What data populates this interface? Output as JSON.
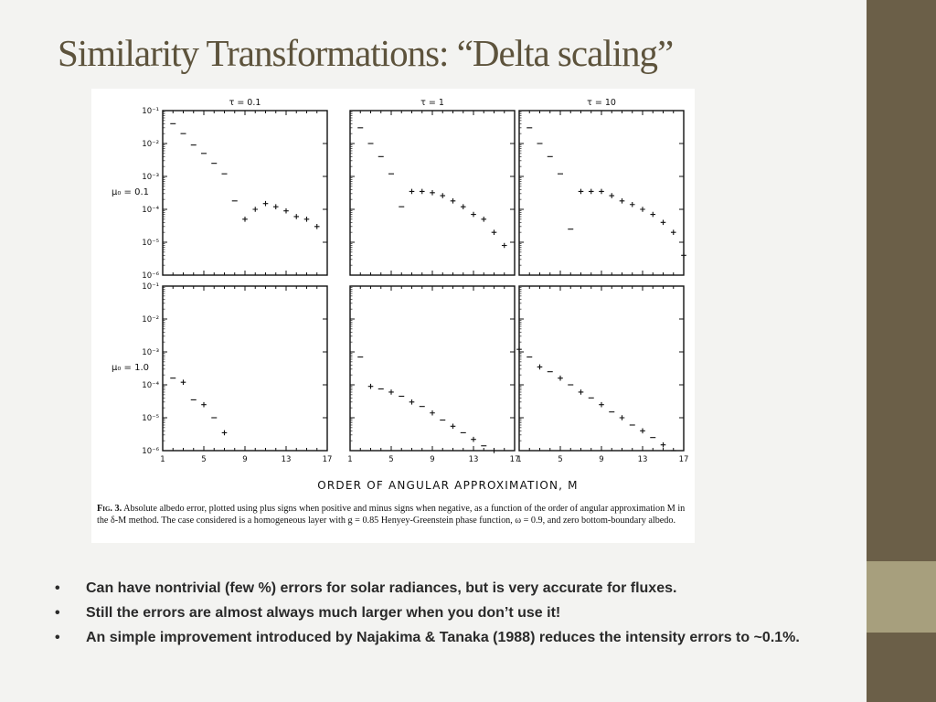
{
  "slide": {
    "title": "Similarity Transformations: “Delta scaling”",
    "colors": {
      "title": "#5d533c",
      "sidebar": "#6b5f48",
      "sidebar_accent": "#a79f7d",
      "background": "#f3f3f1"
    }
  },
  "figure": {
    "caption_label": "Fig. 3.",
    "caption_text": "Absolute albedo error, plotted using plus signs when positive and minus signs when negative, as a function of the order of angular approximation M in the δ-M method. The case considered is a homogeneous layer with g = 0.85 Henyey-Greenstein phase function, ω = 0.9, and zero bottom-boundary albedo."
  },
  "chart_data": {
    "type": "scatter",
    "xlabel": "ORDER OF ANGULAR APPROXIMATION, M",
    "x_ticks": [
      1,
      5,
      9,
      13,
      17
    ],
    "ylim": [
      1e-06,
      0.1
    ],
    "y_scale": "log",
    "y_tick_labels": [
      "10⁻¹",
      "10⁻²",
      "10⁻³",
      "10⁻⁴",
      "10⁻⁵",
      "10⁻⁶"
    ],
    "xlim": [
      1,
      17
    ],
    "column_labels": [
      "τ = 0.1",
      "τ = 1",
      "τ = 10"
    ],
    "row_labels": [
      "μ₀ = 0.1",
      "μ₀ = 1.0"
    ],
    "marker_legend": {
      "plus": "positive error",
      "minus": "negative error"
    },
    "panels": [
      {
        "row": 0,
        "col": 0,
        "points": [
          {
            "x": 2,
            "y": 0.04,
            "s": "-"
          },
          {
            "x": 3,
            "y": 0.02,
            "s": "-"
          },
          {
            "x": 4,
            "y": 0.009,
            "s": "-"
          },
          {
            "x": 5,
            "y": 0.005,
            "s": "-"
          },
          {
            "x": 6,
            "y": 0.0025,
            "s": "-"
          },
          {
            "x": 7,
            "y": 0.0012,
            "s": "-"
          },
          {
            "x": 8,
            "y": 0.00018,
            "s": "-"
          },
          {
            "x": 9,
            "y": 5e-05,
            "s": "+"
          },
          {
            "x": 10,
            "y": 0.0001,
            "s": "+"
          },
          {
            "x": 11,
            "y": 0.00015,
            "s": "+"
          },
          {
            "x": 12,
            "y": 0.00012,
            "s": "+"
          },
          {
            "x": 13,
            "y": 9e-05,
            "s": "+"
          },
          {
            "x": 14,
            "y": 6e-05,
            "s": "+"
          },
          {
            "x": 15,
            "y": 5e-05,
            "s": "+"
          },
          {
            "x": 16,
            "y": 3e-05,
            "s": "+"
          }
        ]
      },
      {
        "row": 0,
        "col": 1,
        "points": [
          {
            "x": 2,
            "y": 0.03,
            "s": "-"
          },
          {
            "x": 3,
            "y": 0.01,
            "s": "-"
          },
          {
            "x": 4,
            "y": 0.004,
            "s": "-"
          },
          {
            "x": 5,
            "y": 0.0012,
            "s": "-"
          },
          {
            "x": 6,
            "y": 0.00012,
            "s": "-"
          },
          {
            "x": 7,
            "y": 0.00035,
            "s": "+"
          },
          {
            "x": 8,
            "y": 0.00035,
            "s": "+"
          },
          {
            "x": 9,
            "y": 0.00032,
            "s": "+"
          },
          {
            "x": 10,
            "y": 0.00026,
            "s": "+"
          },
          {
            "x": 11,
            "y": 0.00018,
            "s": "+"
          },
          {
            "x": 12,
            "y": 0.00012,
            "s": "+"
          },
          {
            "x": 13,
            "y": 7e-05,
            "s": "+"
          },
          {
            "x": 14,
            "y": 5e-05,
            "s": "+"
          },
          {
            "x": 15,
            "y": 2e-05,
            "s": "+"
          },
          {
            "x": 16,
            "y": 8e-06,
            "s": "+"
          }
        ]
      },
      {
        "row": 0,
        "col": 2,
        "points": [
          {
            "x": 2,
            "y": 0.03,
            "s": "-"
          },
          {
            "x": 3,
            "y": 0.01,
            "s": "-"
          },
          {
            "x": 4,
            "y": 0.004,
            "s": "-"
          },
          {
            "x": 5,
            "y": 0.0012,
            "s": "-"
          },
          {
            "x": 6,
            "y": 2.5e-05,
            "s": "-"
          },
          {
            "x": 7,
            "y": 0.00035,
            "s": "+"
          },
          {
            "x": 8,
            "y": 0.00035,
            "s": "+"
          },
          {
            "x": 9,
            "y": 0.00035,
            "s": "+"
          },
          {
            "x": 10,
            "y": 0.00026,
            "s": "+"
          },
          {
            "x": 11,
            "y": 0.00018,
            "s": "+"
          },
          {
            "x": 12,
            "y": 0.00014,
            "s": "+"
          },
          {
            "x": 13,
            "y": 0.0001,
            "s": "+"
          },
          {
            "x": 14,
            "y": 7e-05,
            "s": "+"
          },
          {
            "x": 15,
            "y": 4e-05,
            "s": "+"
          },
          {
            "x": 16,
            "y": 2e-05,
            "s": "+"
          },
          {
            "x": 17,
            "y": 4e-06,
            "s": "+"
          }
        ]
      },
      {
        "row": 1,
        "col": 0,
        "points": [
          {
            "x": 2,
            "y": 0.00016,
            "s": "-"
          },
          {
            "x": 3,
            "y": 0.00012,
            "s": "+"
          },
          {
            "x": 4,
            "y": 3.5e-05,
            "s": "-"
          },
          {
            "x": 5,
            "y": 2.5e-05,
            "s": "+"
          },
          {
            "x": 6,
            "y": 1e-05,
            "s": "-"
          },
          {
            "x": 7,
            "y": 3.5e-06,
            "s": "+"
          }
        ]
      },
      {
        "row": 1,
        "col": 1,
        "points": [
          {
            "x": 2,
            "y": 0.0007,
            "s": "-"
          },
          {
            "x": 3,
            "y": 9e-05,
            "s": "+"
          },
          {
            "x": 4,
            "y": 7.5e-05,
            "s": "-"
          },
          {
            "x": 5,
            "y": 6e-05,
            "s": "+"
          },
          {
            "x": 6,
            "y": 4.5e-05,
            "s": "-"
          },
          {
            "x": 7,
            "y": 3e-05,
            "s": "+"
          },
          {
            "x": 8,
            "y": 2.2e-05,
            "s": "-"
          },
          {
            "x": 9,
            "y": 1.4e-05,
            "s": "+"
          },
          {
            "x": 10,
            "y": 8.5e-06,
            "s": "-"
          },
          {
            "x": 11,
            "y": 5.5e-06,
            "s": "+"
          },
          {
            "x": 12,
            "y": 3.5e-06,
            "s": "-"
          },
          {
            "x": 13,
            "y": 2.2e-06,
            "s": "+"
          },
          {
            "x": 14,
            "y": 1.4e-06,
            "s": "-"
          },
          {
            "x": 15,
            "y": 1e-06,
            "s": "+"
          }
        ]
      },
      {
        "row": 1,
        "col": 2,
        "points": [
          {
            "x": 1,
            "y": 0.0012,
            "s": "+"
          },
          {
            "x": 2,
            "y": 0.0007,
            "s": "-"
          },
          {
            "x": 3,
            "y": 0.00035,
            "s": "+"
          },
          {
            "x": 4,
            "y": 0.00025,
            "s": "-"
          },
          {
            "x": 5,
            "y": 0.00016,
            "s": "+"
          },
          {
            "x": 6,
            "y": 0.0001,
            "s": "-"
          },
          {
            "x": 7,
            "y": 6e-05,
            "s": "+"
          },
          {
            "x": 8,
            "y": 4e-05,
            "s": "-"
          },
          {
            "x": 9,
            "y": 2.5e-05,
            "s": "+"
          },
          {
            "x": 10,
            "y": 1.5e-05,
            "s": "-"
          },
          {
            "x": 11,
            "y": 1e-05,
            "s": "+"
          },
          {
            "x": 12,
            "y": 6e-06,
            "s": "-"
          },
          {
            "x": 13,
            "y": 4e-06,
            "s": "+"
          },
          {
            "x": 14,
            "y": 2.5e-06,
            "s": "-"
          },
          {
            "x": 15,
            "y": 1.5e-06,
            "s": "+"
          },
          {
            "x": 16,
            "y": 1e-06,
            "s": "-"
          }
        ]
      }
    ]
  },
  "bullets": [
    "Can have nontrivial (few %) errors for solar radiances, but is very accurate for fluxes.",
    "Still the errors are almost always much larger when you don’t use it!",
    "An simple improvement introduced by Najakima & Tanaka (1988) reduces the intensity errors to ~0.1%."
  ],
  "bullet_glyph": "•"
}
